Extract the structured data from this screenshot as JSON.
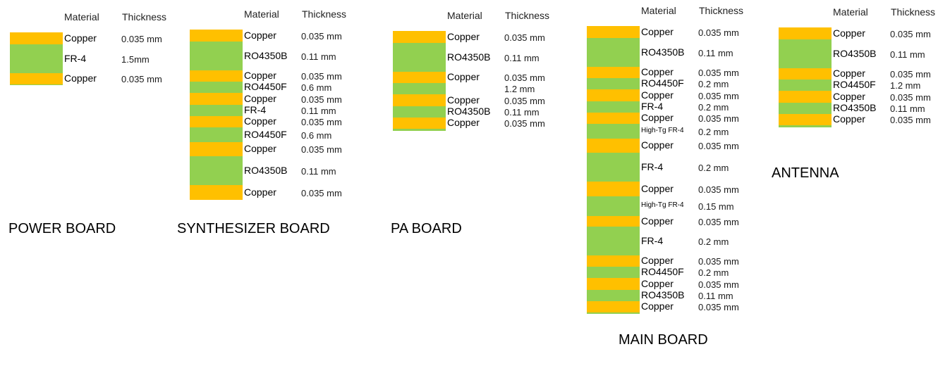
{
  "colors": {
    "copper": "#FFC000",
    "dielectric": "#92D050"
  },
  "headers": {
    "material": "Material",
    "thickness": "Thickness"
  },
  "boards": [
    {
      "title": "POWER BOARD",
      "layers": [
        {
          "kind": "copper",
          "material": "Copper",
          "thickness": "0.035 mm"
        },
        {
          "kind": "dielectric",
          "material": "FR-4",
          "thickness": "1.5mm"
        },
        {
          "kind": "copper",
          "material": "Copper",
          "thickness": "0.035 mm"
        }
      ]
    },
    {
      "title": "SYNTHESIZER BOARD",
      "layers": [
        {
          "kind": "copper",
          "material": "Copper",
          "thickness": "0.035 mm"
        },
        {
          "kind": "dielectric",
          "material": "RO4350B",
          "thickness": "0.11 mm"
        },
        {
          "kind": "copper",
          "material": "Copper",
          "thickness": "0.035 mm"
        },
        {
          "kind": "dielectric",
          "material": "RO4450F",
          "thickness": "0.6 mm"
        },
        {
          "kind": "copper",
          "material": "Copper",
          "thickness": "0.035 mm"
        },
        {
          "kind": "dielectric",
          "material": "FR-4",
          "thickness": "0.11 mm"
        },
        {
          "kind": "copper",
          "material": "Copper",
          "thickness": "0.035 mm"
        },
        {
          "kind": "dielectric",
          "material": "RO4450F",
          "thickness": "0.6 mm"
        },
        {
          "kind": "copper",
          "material": "Copper",
          "thickness": "0.035 mm"
        },
        {
          "kind": "dielectric",
          "material": "RO4350B",
          "thickness": "0.11 mm"
        },
        {
          "kind": "copper",
          "material": "Copper",
          "thickness": "0.035 mm"
        }
      ]
    },
    {
      "title": "PA BOARD",
      "layers": [
        {
          "kind": "copper",
          "material": "Copper",
          "thickness": "0.035 mm"
        },
        {
          "kind": "dielectric",
          "material": "RO4350B",
          "thickness": "0.11 mm"
        },
        {
          "kind": "copper",
          "material": "Copper",
          "thickness": "0.035 mm"
        },
        {
          "kind": "dielectric",
          "material": "",
          "thickness": "1.2 mm"
        },
        {
          "kind": "copper",
          "material": "Copper",
          "thickness": "0.035 mm"
        },
        {
          "kind": "dielectric",
          "material": "RO4350B",
          "thickness": "0.11 mm"
        },
        {
          "kind": "copper",
          "material": "Copper",
          "thickness": "0.035 mm"
        }
      ]
    },
    {
      "title": "MAIN BOARD",
      "layers": [
        {
          "kind": "copper",
          "material": "Copper",
          "thickness": "0.035 mm"
        },
        {
          "kind": "dielectric",
          "material": "RO4350B",
          "thickness": "0.11 mm"
        },
        {
          "kind": "copper",
          "material": "Copper",
          "thickness": "0.035  mm"
        },
        {
          "kind": "dielectric",
          "material": "RO4450F",
          "thickness": "0.2 mm"
        },
        {
          "kind": "copper",
          "material": "Copper",
          "thickness": "0.035 mm"
        },
        {
          "kind": "dielectric",
          "material": "FR-4",
          "thickness": "0.2 mm"
        },
        {
          "kind": "copper",
          "material": "Copper",
          "thickness": "0.035 mm"
        },
        {
          "kind": "dielectric",
          "material": "High-Tg FR-4",
          "thickness": "0.2 mm"
        },
        {
          "kind": "copper",
          "material": "Copper",
          "thickness": "0.035 mm"
        },
        {
          "kind": "dielectric",
          "material": "FR-4",
          "thickness": "0.2 mm"
        },
        {
          "kind": "copper",
          "material": "Copper",
          "thickness": "0.035 mm"
        },
        {
          "kind": "dielectric",
          "material": "High-Tg FR-4",
          "thickness": "0.15 mm"
        },
        {
          "kind": "copper",
          "material": "Copper",
          "thickness": "0.035 mm"
        },
        {
          "kind": "dielectric",
          "material": "FR-4",
          "thickness": "0.2 mm"
        },
        {
          "kind": "copper",
          "material": "Copper",
          "thickness": "0.035 mm"
        },
        {
          "kind": "dielectric",
          "material": "RO4450F",
          "thickness": "0.2 mm"
        },
        {
          "kind": "copper",
          "material": "Copper",
          "thickness": "0.035 mm"
        },
        {
          "kind": "dielectric",
          "material": "RO4350B",
          "thickness": "0.11 mm"
        },
        {
          "kind": "copper",
          "material": "Copper",
          "thickness": "0.035 mm"
        }
      ]
    },
    {
      "title": "ANTENNA",
      "layers": [
        {
          "kind": "copper",
          "material": "Copper",
          "thickness": "0.035 mm"
        },
        {
          "kind": "dielectric",
          "material": "RO4350B",
          "thickness": "0.11 mm"
        },
        {
          "kind": "copper",
          "material": "Copper",
          "thickness": "0.035 mm"
        },
        {
          "kind": "dielectric",
          "material": "RO4450F",
          "thickness": "1.2 mm"
        },
        {
          "kind": "copper",
          "material": "Copper",
          "thickness": "0.035 mm"
        },
        {
          "kind": "dielectric",
          "material": "RO4350B",
          "thickness": "0.11 mm"
        },
        {
          "kind": "copper",
          "material": "Copper",
          "thickness": "0.035 mm"
        }
      ]
    }
  ]
}
